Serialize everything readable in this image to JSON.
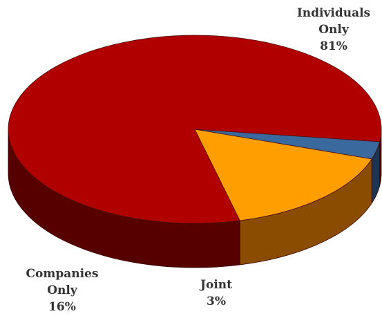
{
  "chart_data": {
    "type": "pie",
    "style": "3d",
    "legend": "none",
    "slices": [
      {
        "label": [
          "Individuals",
          "Only"
        ],
        "value": 81,
        "value_label": "81%",
        "color": "#b00000",
        "side_color": "#560000"
      },
      {
        "label": [
          "Joint"
        ],
        "value": 3,
        "value_label": "3%",
        "color": "#3a6a9d",
        "side_color": "#1b3553"
      },
      {
        "label": [
          "Companies",
          "Only"
        ],
        "value": 16,
        "value_label": "16%",
        "color": "#ff9e00",
        "side_color": "#8a4c00"
      }
    ]
  }
}
